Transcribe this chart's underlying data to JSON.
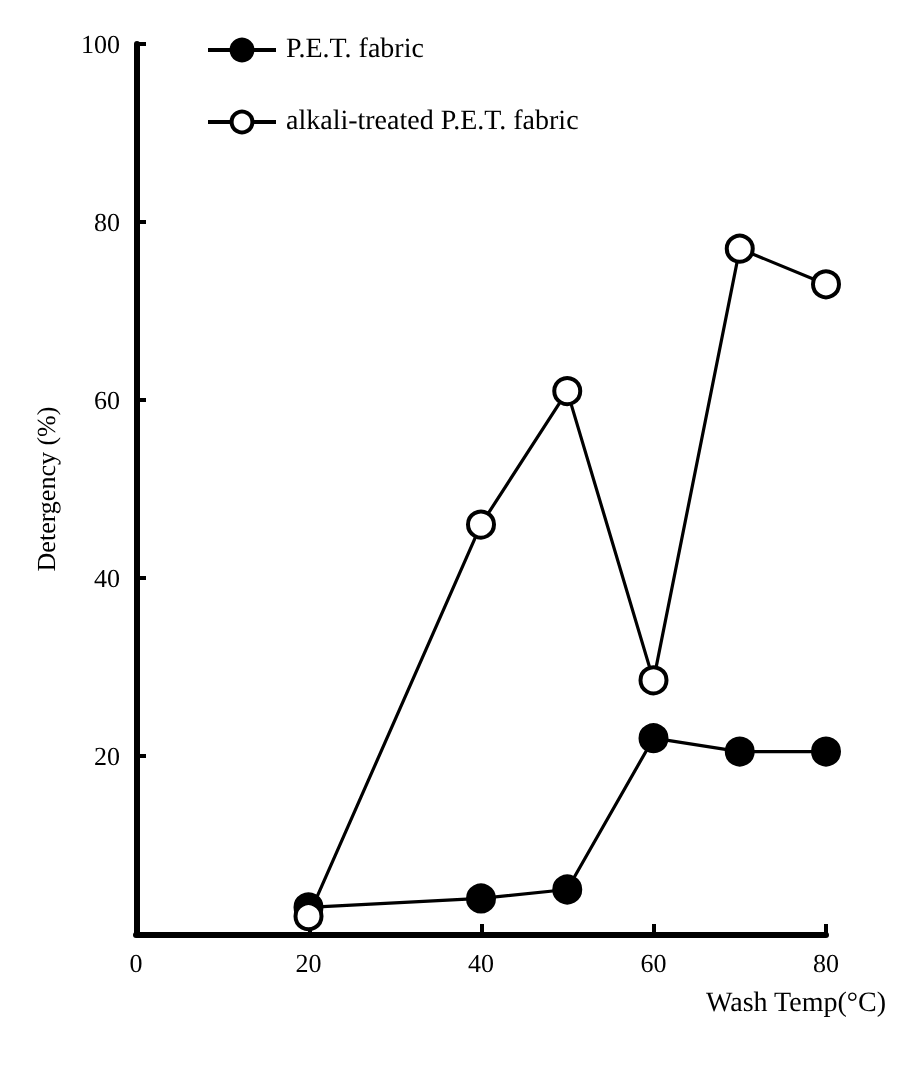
{
  "chart_data": {
    "type": "line",
    "xlabel": "Wash Temp(°C)",
    "ylabel": "Detergency (%)",
    "x": [
      20,
      40,
      50,
      60,
      70,
      80
    ],
    "series": [
      {
        "name": "P.E.T. fabric",
        "color": "#000000",
        "marker": "circle",
        "values": [
          3,
          4,
          5,
          22,
          20.5,
          20.5
        ]
      },
      {
        "name": "alkali-treated P.E.T. fabric",
        "color": "#000000",
        "marker": "circle",
        "values": [
          2,
          46,
          61,
          28.5,
          77,
          73
        ]
      }
    ],
    "xlim": [
      0,
      80
    ],
    "xticks": [
      0,
      20,
      40,
      60,
      80
    ],
    "ylim": [
      0,
      100
    ],
    "yticks": [
      20,
      40,
      60,
      80,
      100
    ],
    "grid": false,
    "legend": "top",
    "line_style": "solid"
  }
}
